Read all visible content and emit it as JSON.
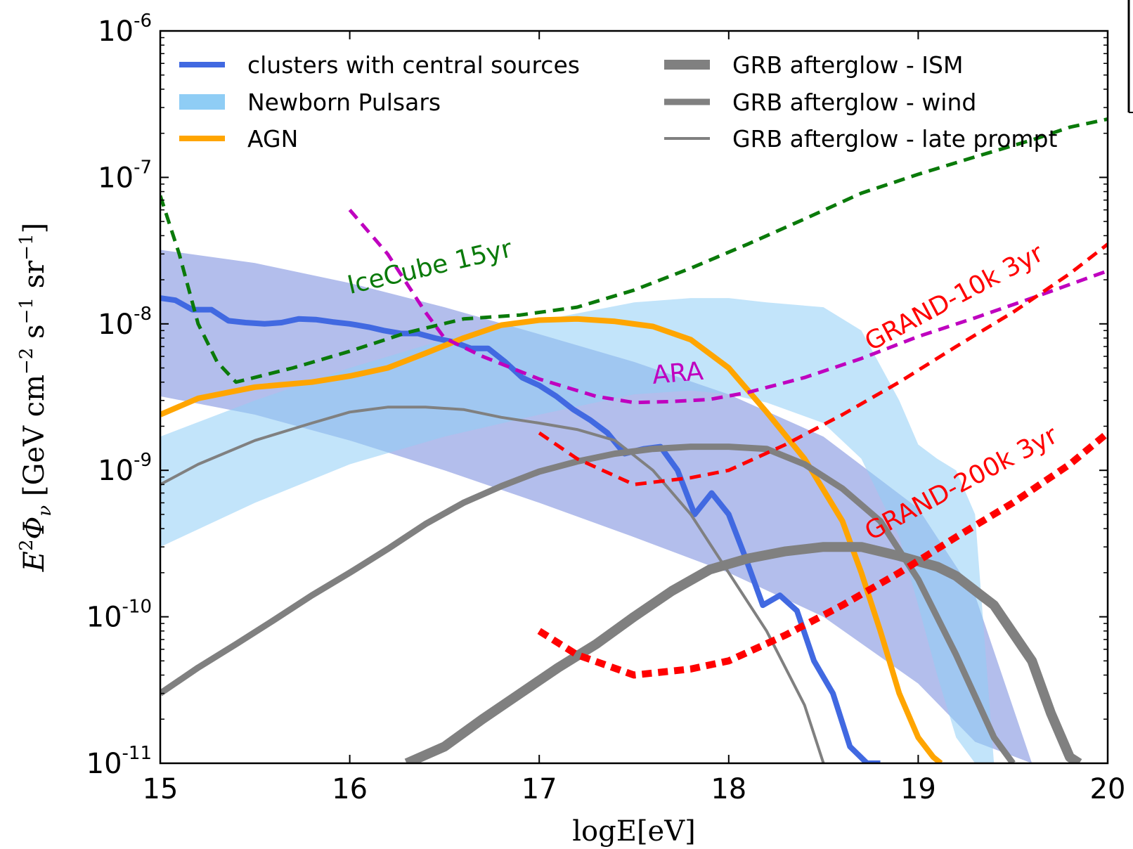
{
  "chart_data": {
    "type": "line",
    "xlabel": "logE[eV]",
    "ylabel_parts": [
      "E",
      "2",
      "Φ",
      "ν",
      " [GeV cm",
      "−2",
      " s",
      "−1",
      " sr",
      "−1",
      "]"
    ],
    "xlim": [
      15,
      20
    ],
    "ylim": [
      1e-11,
      1e-06
    ],
    "y_scale": "log",
    "x_ticks": [
      "15",
      "16",
      "17",
      "18",
      "19",
      "20"
    ],
    "y_ticks": [
      {
        "value": 1e-06,
        "base": "10",
        "exp": "-6"
      },
      {
        "value": 1e-07,
        "base": "10",
        "exp": "-7"
      },
      {
        "value": 1e-08,
        "base": "10",
        "exp": "-8"
      },
      {
        "value": 1e-09,
        "base": "10",
        "exp": "-9"
      },
      {
        "value": 1e-10,
        "base": "10",
        "exp": "-10"
      },
      {
        "value": 1e-11,
        "base": "10",
        "exp": "-11"
      }
    ],
    "legend_position": "top",
    "bands": [
      {
        "key": "clusters_band",
        "color": "#8093e0",
        "opacity": 0.6,
        "x": [
          15.0,
          15.5,
          16.0,
          16.5,
          17.0,
          17.5,
          18.0,
          18.5,
          19.0,
          19.3,
          19.6
        ],
        "upper": [
          3.2e-08,
          2.6e-08,
          1.9e-08,
          1.3e-08,
          8.5e-09,
          5.5e-09,
          3.3e-09,
          1.7e-09,
          5.5e-10,
          1.4e-10,
          1e-11
        ],
        "lower": [
          3.2e-09,
          2.4e-09,
          1.6e-09,
          1e-09,
          6e-10,
          3.5e-10,
          2e-10,
          1e-10,
          3.5e-11,
          1.4e-11,
          1e-11
        ]
      },
      {
        "key": "pulsars_band",
        "color": "#8fcdf5",
        "opacity": 0.55,
        "x": [
          15.0,
          15.5,
          16.0,
          16.5,
          17.0,
          17.5,
          17.8,
          18.0,
          18.2,
          18.5,
          18.7,
          18.9,
          19.0,
          19.1,
          19.2,
          19.3,
          19.4
        ],
        "upper": [
          1.7e-09,
          3e-09,
          5e-09,
          7.8e-09,
          1.05e-08,
          1.4e-08,
          1.5e-08,
          1.5e-08,
          1.4e-08,
          1.3e-08,
          9e-09,
          3e-09,
          1.5e-09,
          1.2e-09,
          1e-09,
          5e-10,
          1e-11
        ],
        "lower": [
          3e-10,
          6e-10,
          1.1e-09,
          1.7e-09,
          2.4e-09,
          3.3e-09,
          3.5e-09,
          3.3e-09,
          2.9e-09,
          2.1e-09,
          1.2e-09,
          3.5e-10,
          1.2e-10,
          4e-11,
          1.5e-11,
          1e-11,
          1e-11
        ]
      }
    ],
    "series": [
      {
        "name": "clusters with central sources",
        "color": "#4169e1",
        "width": 8,
        "dash": "",
        "x": [
          15.0,
          15.08,
          15.17,
          15.27,
          15.36,
          15.45,
          15.55,
          15.64,
          15.73,
          15.82,
          15.91,
          16.0,
          16.1,
          16.18,
          16.27,
          16.36,
          16.45,
          16.55,
          16.64,
          16.73,
          16.82,
          16.91,
          17.0,
          17.09,
          17.18,
          17.27,
          17.36,
          17.45,
          17.55,
          17.64,
          17.73,
          17.82,
          17.91,
          18.0,
          18.09,
          18.18,
          18.27,
          18.36,
          18.45,
          18.55,
          18.64,
          18.73,
          18.8
        ],
        "y": [
          1.5e-08,
          1.45e-08,
          1.25e-08,
          1.25e-08,
          1.05e-08,
          1.02e-08,
          1e-08,
          1.02e-08,
          1.08e-08,
          1.07e-08,
          1.03e-08,
          1e-08,
          9.5e-09,
          9e-09,
          8.6e-09,
          8.6e-09,
          8e-09,
          7.5e-09,
          6.8e-09,
          6.8e-09,
          5.5e-09,
          4.3e-09,
          3.8e-09,
          3.2e-09,
          2.6e-09,
          2.2e-09,
          1.8e-09,
          1.3e-09,
          1.4e-09,
          1.45e-09,
          1e-09,
          5e-10,
          7e-10,
          5e-10,
          2.5e-10,
          1.2e-10,
          1.4e-10,
          1.1e-10,
          5e-11,
          3e-11,
          1.3e-11,
          1e-11,
          1e-11
        ]
      },
      {
        "name": "Newborn Pulsars",
        "color": "#8fcdf5",
        "width": 22,
        "legend_only": true
      },
      {
        "name": "AGN",
        "color": "#ffa500",
        "width": 8,
        "dash": "",
        "x": [
          15.0,
          15.2,
          15.5,
          15.8,
          16.0,
          16.2,
          16.4,
          16.6,
          16.8,
          17.0,
          17.2,
          17.4,
          17.6,
          17.8,
          18.0,
          18.2,
          18.4,
          18.6,
          18.7,
          18.8,
          18.9,
          19.0,
          19.08,
          19.12
        ],
        "y": [
          2.4e-09,
          3.1e-09,
          3.7e-09,
          4e-09,
          4.4e-09,
          5e-09,
          6.3e-09,
          8e-09,
          9.8e-09,
          1.06e-08,
          1.08e-08,
          1.04e-08,
          9.6e-09,
          7.8e-09,
          5e-09,
          2.5e-09,
          1.2e-09,
          4.5e-10,
          2e-10,
          8e-11,
          3e-11,
          1.5e-11,
          1.1e-11,
          1e-11
        ]
      },
      {
        "name": "GRB afterglow - ISM",
        "color": "#808080",
        "width": 14,
        "dash": "",
        "x": [
          16.3,
          16.5,
          16.7,
          16.9,
          17.1,
          17.3,
          17.5,
          17.7,
          17.9,
          18.1,
          18.3,
          18.5,
          18.7,
          18.9,
          19.1,
          19.2,
          19.4,
          19.6,
          19.7,
          19.8,
          19.85
        ],
        "y": [
          1e-11,
          1.3e-11,
          2e-11,
          3e-11,
          4.5e-11,
          6.5e-11,
          1e-10,
          1.5e-10,
          2.1e-10,
          2.5e-10,
          2.8e-10,
          3e-10,
          3e-10,
          2.6e-10,
          2.2e-10,
          1.9e-10,
          1.2e-10,
          5e-11,
          2.2e-11,
          1.1e-11,
          1e-11
        ]
      },
      {
        "name": "GRB afterglow - wind",
        "color": "#808080",
        "width": 9,
        "dash": "",
        "x": [
          15.0,
          15.2,
          15.4,
          15.6,
          15.8,
          16.0,
          16.2,
          16.4,
          16.6,
          16.8,
          17.0,
          17.2,
          17.4,
          17.6,
          17.8,
          18.0,
          18.2,
          18.4,
          18.6,
          18.8,
          19.0,
          19.2,
          19.4,
          19.5
        ],
        "y": [
          3e-11,
          4.5e-11,
          6.5e-11,
          9.5e-11,
          1.4e-10,
          2e-10,
          2.9e-10,
          4.3e-10,
          6e-10,
          7.8e-10,
          9.8e-10,
          1.15e-09,
          1.3e-09,
          1.4e-09,
          1.45e-09,
          1.45e-09,
          1.4e-09,
          1.1e-09,
          7.5e-10,
          4.5e-10,
          1.8e-10,
          5.5e-11,
          1.5e-11,
          1e-11
        ]
      },
      {
        "name": "GRB afterglow - late prompt",
        "color": "#808080",
        "width": 4,
        "dash": "",
        "x": [
          15.0,
          15.2,
          15.5,
          15.8,
          16.0,
          16.2,
          16.4,
          16.6,
          16.8,
          17.0,
          17.2,
          17.4,
          17.6,
          17.8,
          18.0,
          18.2,
          18.4,
          18.5
        ],
        "y": [
          8e-10,
          1.1e-09,
          1.6e-09,
          2.1e-09,
          2.5e-09,
          2.7e-09,
          2.7e-09,
          2.6e-09,
          2.3e-09,
          2.1e-09,
          1.9e-09,
          1.6e-09,
          1e-09,
          5e-10,
          2e-10,
          8e-11,
          2.5e-11,
          1e-11
        ]
      },
      {
        "name": "IceCube 15yr",
        "color": "#0a7a0a",
        "width": 5,
        "dash": "16,10",
        "x": [
          15.0,
          15.1,
          15.2,
          15.3,
          15.4,
          15.7,
          16.0,
          16.3,
          16.6,
          16.9,
          17.2,
          17.5,
          17.8,
          18.1,
          18.4,
          18.7,
          19.0,
          19.3,
          19.6,
          19.8,
          20.0
        ],
        "y": [
          7.5e-08,
          3e-08,
          1e-08,
          5.5e-09,
          4e-09,
          5e-09,
          6.5e-09,
          8.7e-09,
          1.08e-08,
          1.15e-08,
          1.3e-08,
          1.7e-08,
          2.4e-08,
          3.5e-08,
          5.2e-08,
          7.8e-08,
          1.05e-07,
          1.38e-07,
          1.8e-07,
          2.2e-07,
          2.5e-07
        ],
        "label": "IceCube 15yr",
        "label_x": 16.0,
        "label_y": 1.6e-08,
        "label_angle": -13
      },
      {
        "name": "ARA",
        "color": "#bf00bf",
        "width": 5,
        "dash": "16,10",
        "x": [
          16.0,
          16.2,
          16.4,
          16.5,
          16.7,
          17.0,
          17.3,
          17.5,
          17.7,
          17.9,
          18.1,
          18.4,
          18.7,
          19.0,
          19.3,
          19.6,
          20.0
        ],
        "y": [
          6e-08,
          3e-08,
          1.2e-08,
          8e-09,
          6e-09,
          4.2e-09,
          3.2e-09,
          2.9e-09,
          2.95e-09,
          3.05e-09,
          3.4e-09,
          4.3e-09,
          5.8e-09,
          8.2e-09,
          1.1e-08,
          1.5e-08,
          2.3e-08
        ],
        "label": "ARA",
        "label_x": 17.6,
        "label_y": 3.9e-09,
        "label_angle": -5
      },
      {
        "name": "GRAND-10k 3yr",
        "color": "#ff0000",
        "width": 5,
        "dash": "16,10",
        "x": [
          17.0,
          17.2,
          17.5,
          17.8,
          18.0,
          18.3,
          18.6,
          18.9,
          19.2,
          19.5,
          19.8,
          20.0
        ],
        "y": [
          1.8e-09,
          1.2e-09,
          8e-10,
          8.9e-10,
          1e-09,
          1.5e-09,
          2.4e-09,
          4e-09,
          7e-09,
          1.2e-08,
          2.2e-08,
          3.5e-08
        ],
        "label": "GRAND-10k 3yr",
        "label_x": 18.75,
        "label_y": 6.5e-09,
        "label_angle": -28
      },
      {
        "name": "GRAND-200k 3yr",
        "color": "#ff0000",
        "width": 10,
        "dash": "14,9",
        "x": [
          17.0,
          17.2,
          17.5,
          17.8,
          18.0,
          18.3,
          18.6,
          18.9,
          19.2,
          19.5,
          19.8,
          20.0
        ],
        "y": [
          8e-11,
          5.5e-11,
          4e-11,
          4.4e-11,
          5e-11,
          7.5e-11,
          1.2e-10,
          2e-10,
          3.5e-10,
          6e-10,
          1.1e-09,
          1.8e-09
        ],
        "label": "GRAND-200k 3yr",
        "label_x": 18.75,
        "label_y": 3.3e-10,
        "label_angle": -28
      }
    ],
    "legend": [
      {
        "name": "clusters with central sources",
        "color": "#4169e1",
        "width": 8,
        "col": 0,
        "row": 0
      },
      {
        "name": "Newborn Pulsars",
        "color": "#8fcdf5",
        "width": 22,
        "col": 0,
        "row": 1
      },
      {
        "name": "AGN",
        "color": "#ffa500",
        "width": 8,
        "col": 0,
        "row": 2
      },
      {
        "name": "GRB afterglow - ISM",
        "color": "#808080",
        "width": 14,
        "col": 1,
        "row": 0
      },
      {
        "name": "GRB afterglow - wind",
        "color": "#808080",
        "width": 9,
        "col": 1,
        "row": 1
      },
      {
        "name": "GRB afterglow - late prompt",
        "color": "#808080",
        "width": 4,
        "col": 1,
        "row": 2
      }
    ]
  }
}
